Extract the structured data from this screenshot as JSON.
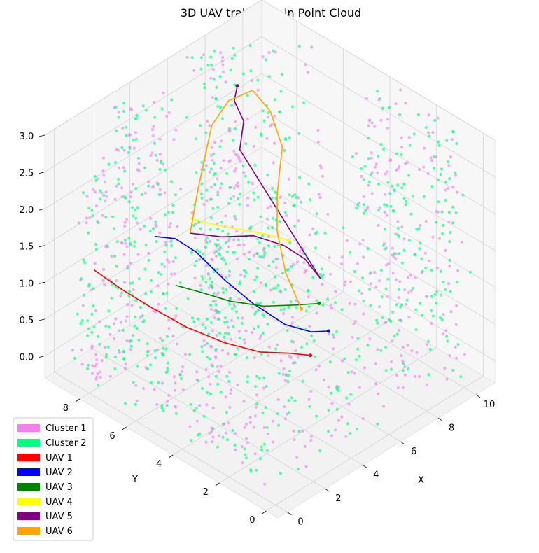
{
  "chart_data": {
    "type": "scatter",
    "title": "3D UAV trajectory in Point Cloud",
    "xlabel": "X",
    "ylabel": "Y",
    "zlabel": "",
    "xlim": [
      -0.5,
      11
    ],
    "ylim": [
      -0.5,
      9.5
    ],
    "zlim": [
      -0.3,
      3.0
    ],
    "x_ticks": [
      0,
      2,
      4,
      6,
      8,
      10
    ],
    "y_ticks": [
      0,
      2,
      4,
      6,
      8
    ],
    "z_ticks": [
      0.0,
      0.5,
      1.0,
      1.5,
      2.0,
      2.5,
      3.0
    ],
    "z_tick_labels": [
      "0.0",
      "0.5",
      "1.0",
      "1.5",
      "2.0",
      "2.5",
      "3.0"
    ],
    "grid": true,
    "legend_position": "lower-left",
    "point_cloud": [
      {
        "name": "Cluster 1",
        "color": "#EE82EE"
      },
      {
        "name": "Cluster 2",
        "color": "#00FF7F"
      }
    ],
    "series": [
      {
        "name": "UAV 1",
        "color": "#FF0000",
        "points": [
          [
            1.0,
            8.6,
            1.1
          ],
          [
            1.2,
            7.6,
            1.0
          ],
          [
            1.5,
            6.6,
            0.9
          ],
          [
            2.2,
            5.6,
            0.7
          ],
          [
            3.0,
            4.6,
            0.55
          ],
          [
            4.0,
            3.9,
            0.4
          ],
          [
            5.0,
            3.5,
            0.3
          ],
          [
            5.8,
            3.2,
            0.2
          ]
        ]
      },
      {
        "name": "UAV 2",
        "color": "#0000FF",
        "points": [
          [
            1.0,
            6.0,
            2.05
          ],
          [
            1.6,
            5.6,
            2.0
          ],
          [
            2.2,
            5.2,
            1.8
          ],
          [
            3.0,
            4.6,
            1.4
          ],
          [
            4.0,
            4.2,
            1.0
          ],
          [
            5.2,
            3.8,
            0.6
          ],
          [
            6.2,
            3.5,
            0.4
          ],
          [
            7.0,
            3.4,
            0.3
          ]
        ]
      },
      {
        "name": "UAV 3",
        "color": "#008000",
        "points": [
          [
            1.5,
            5.5,
            1.4
          ],
          [
            2.5,
            5.2,
            1.2
          ],
          [
            3.5,
            4.8,
            1.0
          ],
          [
            4.8,
            4.4,
            0.8
          ],
          [
            6.0,
            4.0,
            0.7
          ],
          [
            7.0,
            3.8,
            0.6
          ]
        ]
      },
      {
        "name": "UAV 4",
        "color": "#FFFF00",
        "points": [
          [
            3.5,
            6.5,
            1.8
          ],
          [
            4.2,
            6.0,
            1.7
          ],
          [
            5.0,
            5.5,
            1.6
          ],
          [
            5.8,
            5.0,
            1.5
          ],
          [
            6.4,
            4.6,
            1.4
          ]
        ]
      },
      {
        "name": "UAV 5",
        "color": "#800080",
        "points": [
          [
            3.5,
            6.5,
            1.6
          ],
          [
            4.8,
            6.2,
            1.4
          ],
          [
            6.0,
            5.8,
            1.3
          ],
          [
            7.0,
            5.3,
            1.1
          ],
          [
            7.6,
            4.9,
            0.9
          ],
          [
            7.8,
            4.4,
            0.7
          ],
          [
            6.5,
            6.8,
            2.2
          ],
          [
            7.2,
            7.2,
            2.4
          ],
          [
            7.2,
            7.6,
            2.6
          ],
          [
            7.6,
            7.8,
            2.7
          ]
        ]
      },
      {
        "name": "UAV 6",
        "color": "#FFA500",
        "points": [
          [
            3.5,
            6.5,
            1.6
          ],
          [
            4.5,
            7.0,
            1.9
          ],
          [
            5.5,
            7.5,
            2.1
          ],
          [
            6.5,
            8.0,
            2.3
          ],
          [
            8.0,
            8.5,
            2.3
          ],
          [
            9.4,
            8.6,
            2.2
          ],
          [
            9.6,
            8.0,
            2.0
          ],
          [
            9.0,
            7.0,
            1.8
          ],
          [
            7.5,
            6.0,
            1.6
          ],
          [
            6.5,
            5.2,
            1.4
          ],
          [
            6.2,
            4.6,
            1.0
          ],
          [
            6.3,
            4.0,
            0.6
          ]
        ]
      }
    ]
  }
}
